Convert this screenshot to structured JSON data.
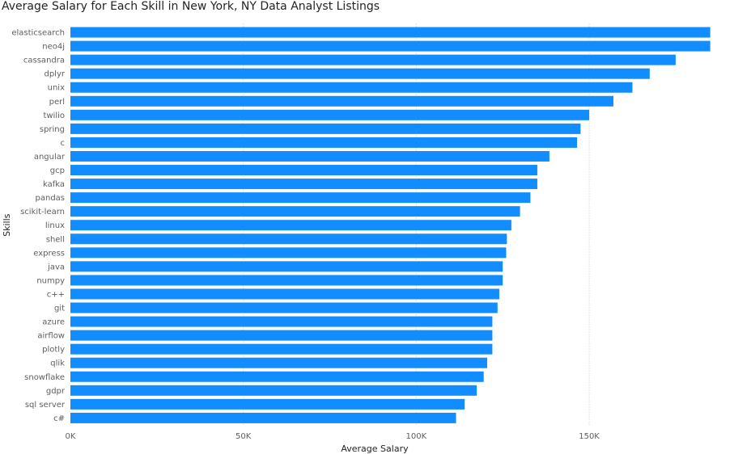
{
  "chart_data": {
    "type": "bar",
    "orientation": "horizontal",
    "title": "Average Salary for Each Skill in New York, NY Data Analyst Listings",
    "xlabel": "Average Salary",
    "ylabel": "Skills",
    "categories": [
      "elasticsearch",
      "neo4j",
      "cassandra",
      "dplyr",
      "unix",
      "perl",
      "twilio",
      "spring",
      "c",
      "angular",
      "gcp",
      "kafka",
      "pandas",
      "scikit-learn",
      "linux",
      "shell",
      "express",
      "java",
      "numpy",
      "c++",
      "git",
      "azure",
      "airflow",
      "plotly",
      "qlik",
      "snowflake",
      "gdpr",
      "sql server",
      "c#"
    ],
    "values": [
      185000,
      185000,
      175000,
      167500,
      162500,
      157000,
      150000,
      147500,
      146500,
      138500,
      135000,
      135000,
      133000,
      130000,
      127500,
      126200,
      126000,
      125000,
      125000,
      124000,
      123500,
      122000,
      122000,
      122000,
      120500,
      119500,
      117500,
      114000,
      111500
    ],
    "x_ticks": [
      "0K",
      "50K",
      "100K",
      "150K"
    ],
    "xlim": [
      0,
      190000
    ],
    "bar_color": "#118DFF",
    "grid": "vertical dotted"
  }
}
